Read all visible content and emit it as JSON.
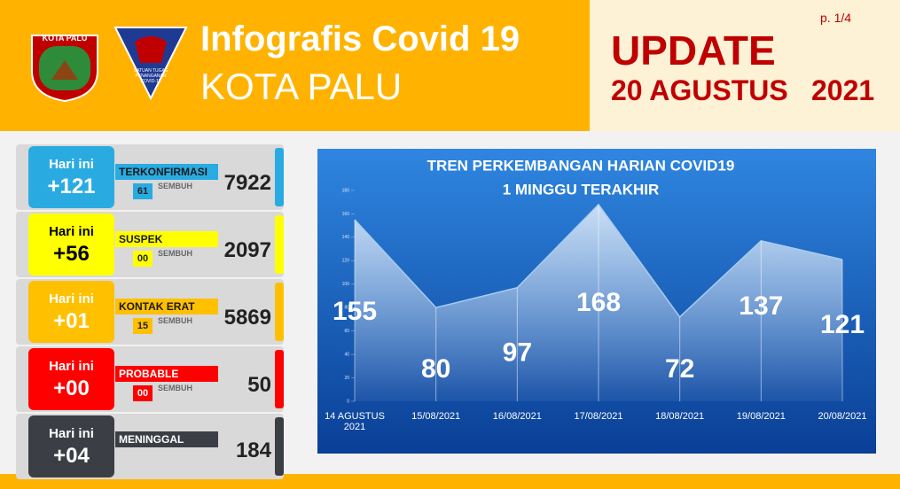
{
  "header": {
    "logo_label": "KOTA PALU",
    "logo2_text": "SATUAN TUGAS PENANGANAN COVID-19",
    "title": "Infografis Covid 19",
    "subtitle": "KOTA PALU",
    "update": "UPDATE",
    "date": "20 AGUSTUS",
    "year": "2021",
    "page": "p. 1/4"
  },
  "cards": [
    {
      "today_label": "Hari ini",
      "today": "+121",
      "label": "TERKONFIRMASI",
      "total": "7922",
      "recovered": "61",
      "recovered_label": "SEMBUH",
      "color": "#29abe2",
      "text": "#ffffff",
      "label_text": "#1a1a1a"
    },
    {
      "today_label": "Hari ini",
      "today": "+56",
      "label": "SUSPEK",
      "total": "2097",
      "recovered": "00",
      "recovered_label": "SEMBUH",
      "color": "#ffff00",
      "text": "#000000",
      "label_text": "#1a1a1a"
    },
    {
      "today_label": "Hari ini",
      "today": "+01",
      "label": "KONTAK ERAT",
      "total": "5869",
      "recovered": "15",
      "recovered_label": "SEMBUH",
      "color": "#ffc000",
      "text": "#ffffff",
      "label_text": "#1a1a1a"
    },
    {
      "today_label": "Hari ini",
      "today": "+00",
      "label": "PROBABLE",
      "total": "50",
      "recovered": "00",
      "recovered_label": "SEMBUH",
      "color": "#ff0000",
      "text": "#ffffff",
      "label_text": "#ffffff"
    },
    {
      "today_label": "Hari ini",
      "today": "+04",
      "label": "MENINGGAL",
      "total": "184",
      "color": "#3b3f45",
      "text": "#ffffff",
      "label_text": "#ffffff"
    }
  ],
  "chart_data": {
    "type": "area",
    "title": "TREN PERKEMBANGAN HARIAN COVID19",
    "subtitle": "1 MINGGU TERAKHIR",
    "categories": [
      "14 AGUSTUS 2021",
      "15/08/2021",
      "16/08/2021",
      "17/08/2021",
      "18/08/2021",
      "19/08/2021",
      "20/08/2021"
    ],
    "values": [
      155,
      80,
      97,
      168,
      72,
      137,
      121
    ],
    "color": "#a9cdf0",
    "ylim": [
      0,
      180
    ],
    "yticks": [
      0,
      20,
      40,
      60,
      80,
      100,
      120,
      140,
      160,
      180
    ]
  }
}
